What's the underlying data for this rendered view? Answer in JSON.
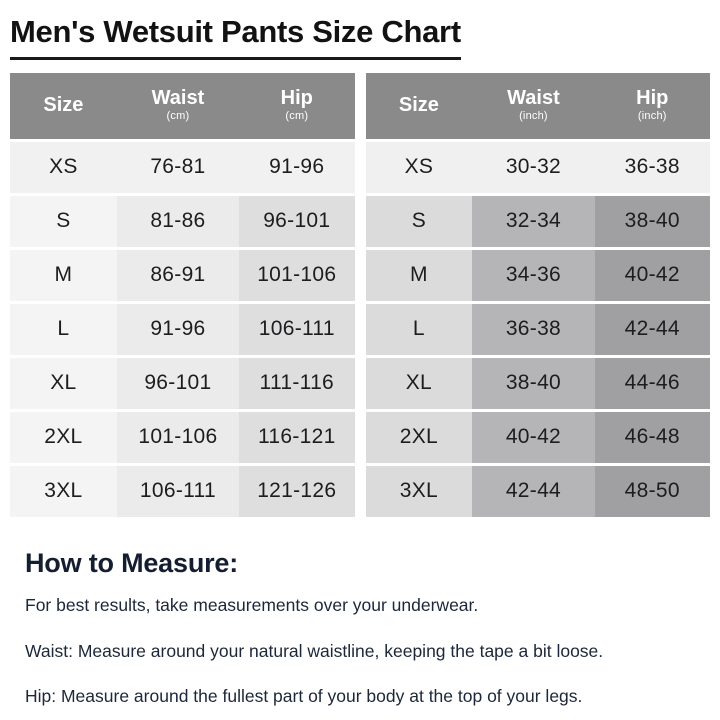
{
  "title": "Men's Wetsuit Pants Size Chart",
  "colors": {
    "header_gray": "#8a8a8b",
    "cm_size_col": "#f4f4f5",
    "cm_waist_col": "#ebebec",
    "cm_hip_col": "#dededf",
    "cm_first_row": "#f1f1f2",
    "inch_size_col": "#dbdbdc",
    "inch_waist_col": "#b5b5b7",
    "inch_hip_col": "#a0a0a2",
    "inch_first_row": "#f0f0f1",
    "heading_navy": "#141e30"
  },
  "tables": [
    {
      "unit_name": "cm",
      "headers": {
        "size": "Size",
        "waist": "Waist",
        "waist_unit": "(cm)",
        "hip": "Hip",
        "hip_unit": "(cm)"
      },
      "rows": [
        {
          "size": "XS",
          "waist": "76-81",
          "hip": "91-96"
        },
        {
          "size": "S",
          "waist": "81-86",
          "hip": "96-101"
        },
        {
          "size": "M",
          "waist": "86-91",
          "hip": "101-106"
        },
        {
          "size": "L",
          "waist": "91-96",
          "hip": "106-111"
        },
        {
          "size": "XL",
          "waist": "96-101",
          "hip": "111-116"
        },
        {
          "size": "2XL",
          "waist": "101-106",
          "hip": "116-121"
        },
        {
          "size": "3XL",
          "waist": "106-111",
          "hip": "121-126"
        }
      ]
    },
    {
      "unit_name": "inch",
      "headers": {
        "size": "Size",
        "waist": "Waist",
        "waist_unit": "(inch)",
        "hip": "Hip",
        "hip_unit": "(inch)"
      },
      "rows": [
        {
          "size": "XS",
          "waist": "30-32",
          "hip": "36-38"
        },
        {
          "size": "S",
          "waist": "32-34",
          "hip": "38-40"
        },
        {
          "size": "M",
          "waist": "34-36",
          "hip": "40-42"
        },
        {
          "size": "L",
          "waist": "36-38",
          "hip": "42-44"
        },
        {
          "size": "XL",
          "waist": "38-40",
          "hip": "44-46"
        },
        {
          "size": "2XL",
          "waist": "40-42",
          "hip": "46-48"
        },
        {
          "size": "3XL",
          "waist": "42-44",
          "hip": "48-50"
        }
      ]
    }
  ],
  "how_to_measure": {
    "heading": "How to Measure:",
    "lines": [
      "For best results, take measurements over your underwear.",
      "Waist: Measure around your natural waistline, keeping the tape a bit loose.",
      "Hip: Measure around the fullest part of your body at the top of your legs."
    ]
  }
}
